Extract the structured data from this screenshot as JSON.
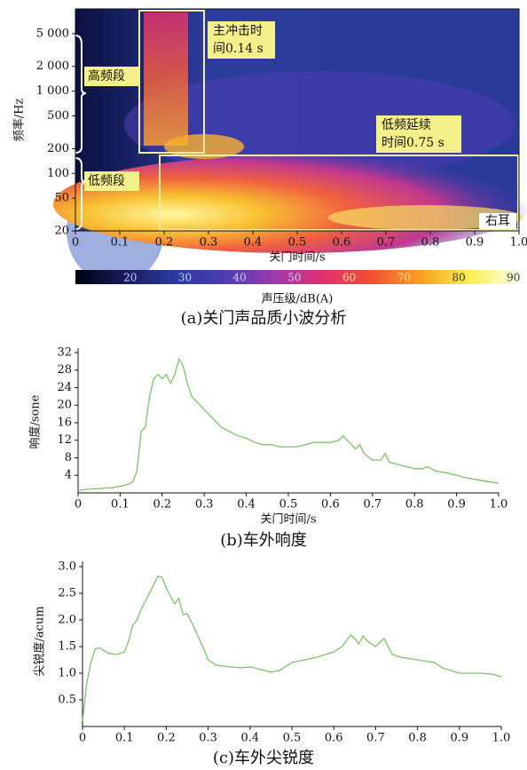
{
  "chart_data": [
    {
      "type": "spectrogram",
      "caption": "(a)关门声品质小波分析",
      "xlabel": "关门时间/s",
      "ylabel": "频率/Hz",
      "xlim": [
        0,
        1
      ],
      "xticks": [
        0,
        0.1,
        0.2,
        0.3,
        0.4,
        0.5,
        0.6,
        0.7,
        0.8,
        0.9,
        {
          "value": 1,
          "label": "1.0"
        }
      ],
      "ylim": [
        20,
        10000
      ],
      "ylog": true,
      "yticks": [
        20,
        50,
        100,
        200,
        500,
        {
          "value": 1000,
          "label": "1 000"
        },
        {
          "value": 2000,
          "label": "2 000"
        },
        {
          "value": 5000,
          "label": "5 000"
        }
      ],
      "annotations": [
        {
          "lines": [
            "主冲击时",
            "间0.14 s"
          ]
        },
        {
          "lines": [
            "低频延续",
            "时间0.75 s"
          ]
        },
        {
          "lines": [
            "高频段"
          ]
        },
        {
          "lines": [
            "低频段"
          ]
        },
        {
          "lines": [
            "右耳"
          ]
        }
      ],
      "colorbar": {
        "label": "声压级/dB(A)",
        "lim": [
          10,
          91
        ],
        "ticks": [
          20,
          30,
          40,
          50,
          60,
          70,
          80,
          90
        ],
        "colors": [
          "#000010",
          "#1a1a5a",
          "#2a3aa0",
          "#4a3cb0",
          "#9a3cb0",
          "#e03070",
          "#f05030",
          "#f8a020",
          "#f8f050",
          "#fffff0"
        ]
      }
    },
    {
      "type": "line",
      "caption": "(b)车外响度",
      "xlabel": "关门时间/s",
      "ylabel": "响度/sone",
      "color": "#7cc36a",
      "xlim": [
        0,
        1
      ],
      "xticks": [
        0,
        0.1,
        0.2,
        0.3,
        0.4,
        0.5,
        0.6,
        0.7,
        0.8,
        0.9,
        {
          "value": 1,
          "label": "1.0"
        }
      ],
      "ylim": [
        0,
        33
      ],
      "yticks": [
        4,
        8,
        12,
        16,
        20,
        24,
        28,
        32
      ],
      "x": [
        0,
        0.02,
        0.05,
        0.08,
        0.1,
        0.12,
        0.13,
        0.14,
        0.15,
        0.16,
        0.17,
        0.18,
        0.19,
        0.2,
        0.21,
        0.22,
        0.23,
        0.24,
        0.25,
        0.26,
        0.27,
        0.28,
        0.3,
        0.32,
        0.34,
        0.36,
        0.38,
        0.4,
        0.42,
        0.44,
        0.46,
        0.48,
        0.5,
        0.52,
        0.54,
        0.56,
        0.58,
        0.6,
        0.62,
        0.63,
        0.64,
        0.66,
        0.67,
        0.68,
        0.7,
        0.72,
        0.73,
        0.74,
        0.76,
        0.78,
        0.8,
        0.82,
        0.83,
        0.85,
        0.88,
        0.9,
        0.92,
        0.95,
        0.98,
        1
      ],
      "values": [
        0.5,
        0.8,
        1,
        1.2,
        1.5,
        2,
        2.5,
        5,
        14,
        15,
        22,
        26,
        27,
        26,
        27,
        25,
        27,
        30.5,
        29,
        25,
        22,
        21,
        19,
        17,
        15,
        14,
        13,
        12.5,
        11.5,
        11,
        11,
        10.5,
        10.5,
        10.5,
        11,
        11.5,
        11.5,
        11.5,
        12,
        13,
        12,
        10,
        11,
        9,
        7.5,
        7.5,
        9,
        7,
        6.5,
        6,
        5.5,
        5.5,
        6,
        5,
        4.5,
        4,
        3.5,
        3,
        2.5,
        2.2
      ]
    },
    {
      "type": "line",
      "caption": "(c)车外尖锐度",
      "ylabel": "尖锐度/acum",
      "color": "#7cc36a",
      "xlim": [
        0,
        1
      ],
      "xticks": [
        0,
        0.1,
        0.2,
        0.3,
        0.4,
        0.5,
        0.6,
        0.7,
        0.8,
        0.9,
        {
          "value": 1,
          "label": "1.0"
        }
      ],
      "ylim": [
        0,
        3.1
      ],
      "yticks": [
        0.5,
        {
          "value": 1,
          "label": "1.0"
        },
        1.5,
        {
          "value": 2,
          "label": "2.0"
        },
        2.5,
        {
          "value": 3,
          "label": "3.0"
        }
      ],
      "x": [
        0,
        0.01,
        0.02,
        0.03,
        0.04,
        0.06,
        0.08,
        0.1,
        0.11,
        0.12,
        0.13,
        0.14,
        0.16,
        0.18,
        0.19,
        0.2,
        0.22,
        0.23,
        0.24,
        0.25,
        0.27,
        0.29,
        0.3,
        0.32,
        0.35,
        0.38,
        0.4,
        0.42,
        0.45,
        0.47,
        0.5,
        0.53,
        0.56,
        0.6,
        0.62,
        0.64,
        0.65,
        0.66,
        0.67,
        0.68,
        0.7,
        0.72,
        0.74,
        0.76,
        0.8,
        0.84,
        0.86,
        0.88,
        0.9,
        0.95,
        0.98,
        1
      ],
      "values": [
        0.1,
        0.8,
        1.2,
        1.45,
        1.48,
        1.38,
        1.35,
        1.4,
        1.6,
        1.9,
        2,
        2.2,
        2.5,
        2.82,
        2.8,
        2.6,
        2.3,
        2.4,
        2.1,
        2.12,
        1.8,
        1.45,
        1.25,
        1.15,
        1.12,
        1.1,
        1.12,
        1.08,
        1.02,
        1.05,
        1.2,
        1.25,
        1.3,
        1.4,
        1.5,
        1.72,
        1.65,
        1.55,
        1.7,
        1.6,
        1.5,
        1.65,
        1.35,
        1.3,
        1.25,
        1.2,
        1.1,
        1.05,
        1,
        1,
        0.98,
        0.93
      ]
    }
  ]
}
